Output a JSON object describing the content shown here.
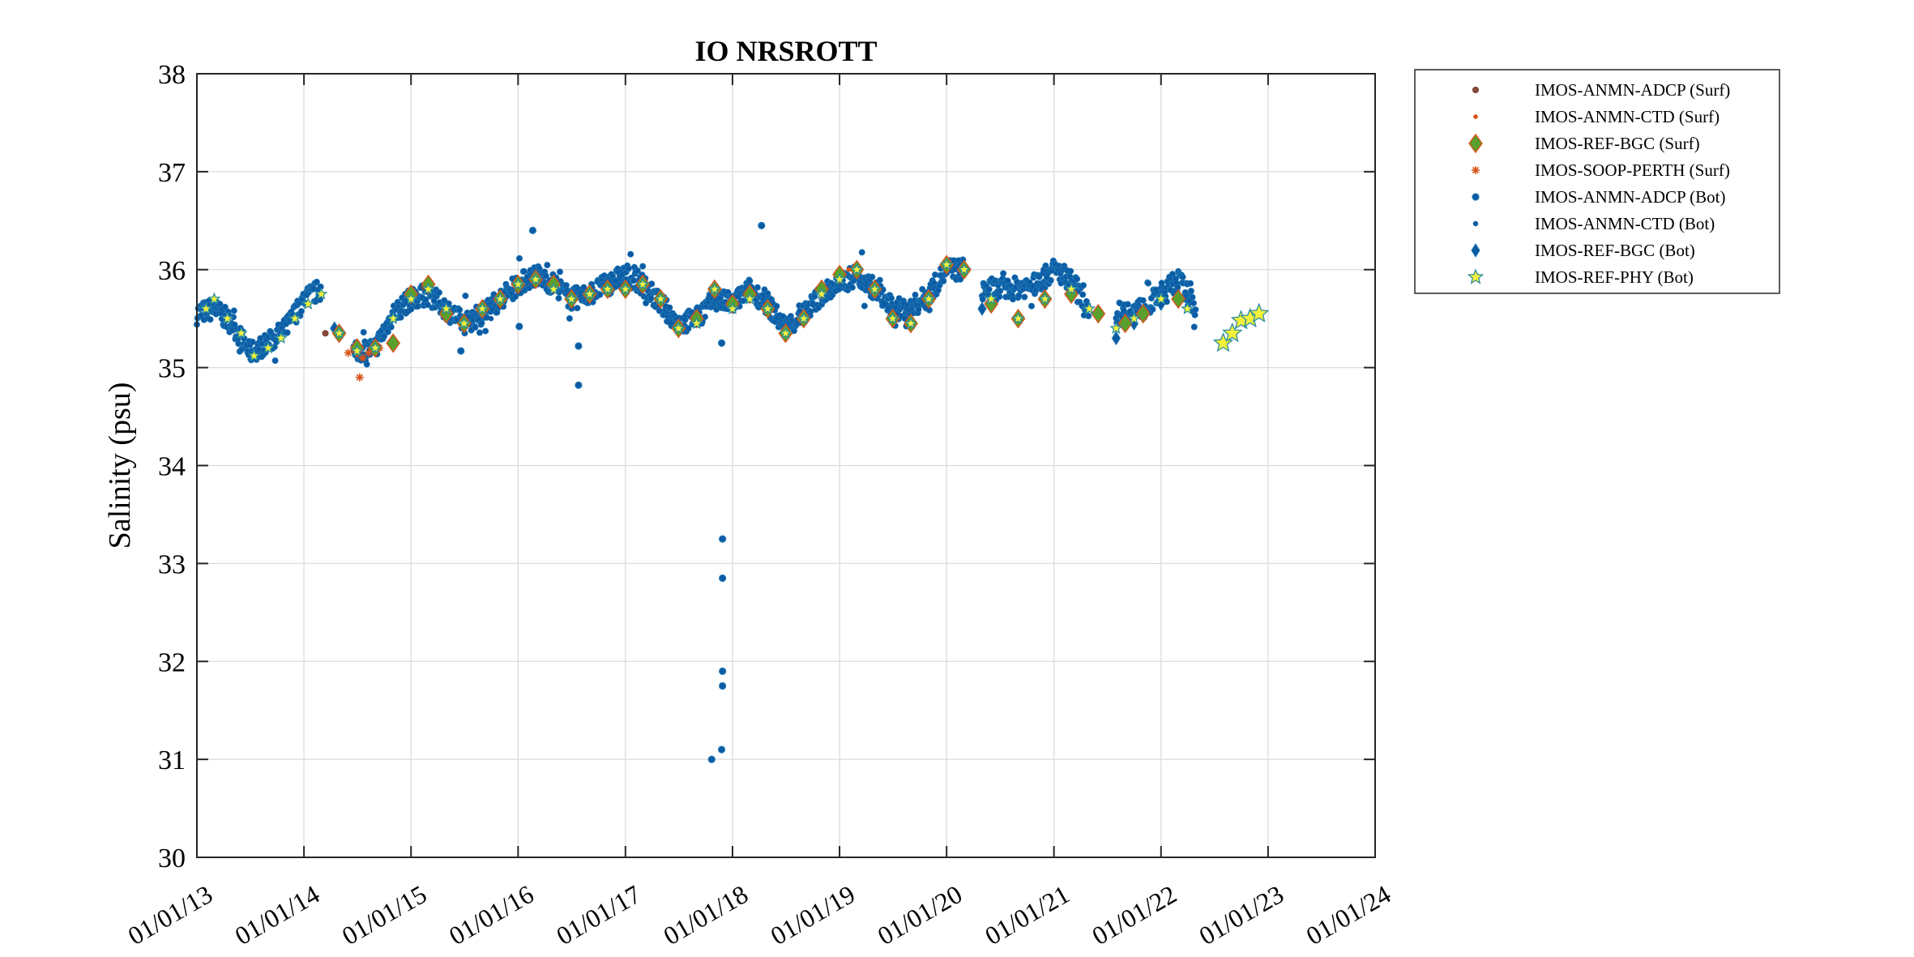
{
  "chart_data": {
    "type": "scatter",
    "title": "IO NRSROTT",
    "xlabel": "",
    "ylabel": "Salinity (psu)",
    "x_is_date": true,
    "xlim": [
      "2013-01-01",
      "2024-01-01"
    ],
    "ylim": [
      30,
      38
    ],
    "x_ticks": [
      "01/01/13",
      "01/01/14",
      "01/01/15",
      "01/01/16",
      "01/01/17",
      "01/01/18",
      "01/01/19",
      "01/01/20",
      "01/01/21",
      "01/01/22",
      "01/01/23",
      "01/01/24"
    ],
    "y_ticks": [
      "30",
      "31",
      "32",
      "33",
      "34",
      "35",
      "36",
      "37",
      "38"
    ],
    "grid": true,
    "legend_position": "outside-top-right",
    "colors": {
      "bot_blue": "#0b5aa4",
      "bot_edge": "#1f77b4",
      "surf_orange": "#d95319",
      "surf_brown": "#8c4a3a",
      "bgc_green": "#5aa02c",
      "star_yellow": "#f5f03a",
      "star_teal": "#2b8f9e",
      "grid": "#dcdcdc",
      "axis": "#262626"
    },
    "series": [
      {
        "name": "IMOS-ANMN-ADCP (Surf)",
        "marker": "dot-brown",
        "points": [
          [
            "2014-03-15",
            35.35
          ],
          [
            "2014-06-20",
            35.18
          ],
          [
            "2014-09-10",
            35.22
          ],
          [
            "2015-02-15",
            35.82
          ]
        ]
      },
      {
        "name": "IMOS-ANMN-CTD (Surf)",
        "marker": "dot-orange",
        "points": [
          [
            "2014-07-01",
            35.2
          ],
          [
            "2015-03-01",
            35.85
          ],
          [
            "2016-05-01",
            35.9
          ],
          [
            "2019-02-01",
            36.0
          ]
        ]
      },
      {
        "name": "IMOS-REF-BGC (Surf)",
        "marker": "diamond-green",
        "points": [
          [
            "2014-05-01",
            35.35
          ],
          [
            "2014-07-01",
            35.2
          ],
          [
            "2014-09-01",
            35.2
          ],
          [
            "2014-11-01",
            35.25
          ],
          [
            "2015-01-01",
            35.75
          ],
          [
            "2015-03-01",
            35.85
          ],
          [
            "2015-05-01",
            35.55
          ],
          [
            "2015-07-01",
            35.45
          ],
          [
            "2015-09-01",
            35.6
          ],
          [
            "2015-11-01",
            35.7
          ],
          [
            "2016-01-01",
            35.85
          ],
          [
            "2016-03-01",
            35.9
          ],
          [
            "2016-05-01",
            35.85
          ],
          [
            "2016-07-01",
            35.7
          ],
          [
            "2016-09-01",
            35.75
          ],
          [
            "2016-11-01",
            35.8
          ],
          [
            "2017-01-01",
            35.8
          ],
          [
            "2017-03-01",
            35.85
          ],
          [
            "2017-05-01",
            35.7
          ],
          [
            "2017-07-01",
            35.4
          ],
          [
            "2017-09-01",
            35.5
          ],
          [
            "2017-11-01",
            35.8
          ],
          [
            "2018-01-01",
            35.65
          ],
          [
            "2018-03-01",
            35.75
          ],
          [
            "2018-05-01",
            35.6
          ],
          [
            "2018-07-01",
            35.35
          ],
          [
            "2018-09-01",
            35.5
          ],
          [
            "2018-11-01",
            35.8
          ],
          [
            "2019-01-01",
            35.95
          ],
          [
            "2019-03-01",
            36.0
          ],
          [
            "2019-05-01",
            35.8
          ],
          [
            "2019-07-01",
            35.5
          ],
          [
            "2019-09-01",
            35.45
          ],
          [
            "2019-11-01",
            35.7
          ],
          [
            "2020-01-01",
            36.05
          ],
          [
            "2020-03-01",
            36.0
          ],
          [
            "2020-06-01",
            35.65
          ],
          [
            "2020-09-01",
            35.5
          ],
          [
            "2020-12-01",
            35.7
          ],
          [
            "2021-03-01",
            35.75
          ],
          [
            "2021-06-01",
            35.55
          ],
          [
            "2021-09-01",
            35.45
          ],
          [
            "2021-11-01",
            35.55
          ],
          [
            "2022-03-01",
            35.7
          ]
        ]
      },
      {
        "name": "IMOS-SOOP-PERTH (Surf)",
        "marker": "asterisk-orange",
        "points": [
          [
            "2014-07-10",
            34.9
          ],
          [
            "2014-06-01",
            35.15
          ],
          [
            "2014-07-20",
            35.1
          ],
          [
            "2014-08-10",
            35.15
          ],
          [
            "2014-08-25",
            35.2
          ],
          [
            "2014-09-15",
            35.2
          ]
        ]
      },
      {
        "name": "IMOS-ANMN-ADCP (Bot)",
        "marker": "circle-blue",
        "points": [
          [
            "2017-10-22",
            31.0
          ],
          [
            "2017-11-25",
            31.1
          ],
          [
            "2017-11-28",
            31.75
          ],
          [
            "2017-11-28",
            31.9
          ],
          [
            "2017-11-28",
            32.85
          ],
          [
            "2017-11-28",
            33.25
          ],
          [
            "2017-11-25",
            35.25
          ],
          [
            "2016-07-25",
            34.82
          ],
          [
            "2016-07-25",
            35.22
          ],
          [
            "2015-06-20",
            35.17
          ],
          [
            "2016-01-05",
            35.42
          ],
          [
            "2018-04-10",
            36.45
          ],
          [
            "2016-02-20",
            36.4
          ]
        ]
      },
      {
        "name": "IMOS-ANMN-CTD (Bot)",
        "marker": "dot-blue",
        "points": [
          [
            "2013-06-01",
            35.35
          ],
          [
            "2015-10-01",
            35.5
          ],
          [
            "2017-06-01",
            35.45
          ],
          [
            "2019-06-01",
            35.65
          ],
          [
            "2021-06-01",
            35.55
          ]
        ]
      },
      {
        "name": "IMOS-REF-BGC (Bot)",
        "marker": "diamond-blue",
        "points": [
          [
            "2014-04-15",
            35.4
          ],
          [
            "2020-05-01",
            35.6
          ],
          [
            "2021-08-01",
            35.3
          ],
          [
            "2021-10-01",
            35.45
          ],
          [
            "2022-01-01",
            35.65
          ]
        ]
      },
      {
        "name": "IMOS-REF-PHY (Bot)",
        "marker": "star",
        "points": [
          [
            "2013-02-01",
            35.6
          ],
          [
            "2013-03-01",
            35.7
          ],
          [
            "2013-04-15",
            35.5
          ],
          [
            "2013-06-01",
            35.35
          ],
          [
            "2013-07-15",
            35.12
          ],
          [
            "2013-09-01",
            35.2
          ],
          [
            "2013-10-15",
            35.3
          ],
          [
            "2013-12-01",
            35.5
          ],
          [
            "2014-01-15",
            35.65
          ],
          [
            "2014-03-01",
            35.75
          ],
          [
            "2014-05-01",
            35.35
          ],
          [
            "2014-07-01",
            35.17
          ],
          [
            "2014-09-01",
            35.2
          ],
          [
            "2014-11-01",
            35.5
          ],
          [
            "2015-01-01",
            35.7
          ],
          [
            "2015-03-01",
            35.8
          ],
          [
            "2015-05-01",
            35.6
          ],
          [
            "2015-07-01",
            35.45
          ],
          [
            "2015-09-01",
            35.6
          ],
          [
            "2015-11-01",
            35.7
          ],
          [
            "2016-01-01",
            35.85
          ],
          [
            "2016-03-01",
            35.9
          ],
          [
            "2016-05-01",
            35.8
          ],
          [
            "2016-07-01",
            35.7
          ],
          [
            "2016-09-01",
            35.75
          ],
          [
            "2016-11-01",
            35.8
          ],
          [
            "2017-01-01",
            35.8
          ],
          [
            "2017-03-01",
            35.85
          ],
          [
            "2017-05-01",
            35.7
          ],
          [
            "2017-07-01",
            35.4
          ],
          [
            "2017-09-01",
            35.45
          ],
          [
            "2017-11-01",
            35.8
          ],
          [
            "2018-01-01",
            35.6
          ],
          [
            "2018-03-01",
            35.7
          ],
          [
            "2018-05-01",
            35.6
          ],
          [
            "2018-07-01",
            35.35
          ],
          [
            "2018-09-01",
            35.5
          ],
          [
            "2018-11-01",
            35.75
          ],
          [
            "2019-01-01",
            35.9
          ],
          [
            "2019-03-01",
            36.0
          ],
          [
            "2019-05-01",
            35.8
          ],
          [
            "2019-07-01",
            35.5
          ],
          [
            "2019-09-01",
            35.45
          ],
          [
            "2019-11-01",
            35.7
          ],
          [
            "2020-01-01",
            36.05
          ],
          [
            "2020-03-01",
            36.0
          ],
          [
            "2020-06-01",
            35.7
          ],
          [
            "2020-09-01",
            35.5
          ],
          [
            "2020-12-01",
            35.7
          ],
          [
            "2021-03-01",
            35.8
          ],
          [
            "2021-05-01",
            35.6
          ],
          [
            "2021-08-01",
            35.4
          ],
          [
            "2021-10-01",
            35.5
          ],
          [
            "2022-01-01",
            35.7
          ],
          [
            "2022-04-01",
            35.6
          ],
          [
            "2022-08-01",
            35.25
          ],
          [
            "2022-09-01",
            35.35
          ],
          [
            "2022-10-01",
            35.48
          ],
          [
            "2022-11-01",
            35.5
          ],
          [
            "2022-12-01",
            35.55
          ]
        ]
      }
    ],
    "dense_band": {
      "series": "IMOS-ANMN-ADCP (Bot)",
      "segments": [
        [
          [
            "2013-01-01",
            35.55
          ],
          [
            "2013-03-01",
            35.6
          ],
          [
            "2013-05-01",
            35.45
          ],
          [
            "2013-07-01",
            35.15
          ],
          [
            "2013-09-01",
            35.25
          ],
          [
            "2013-11-01",
            35.4
          ],
          [
            "2014-01-01",
            35.7
          ],
          [
            "2014-03-01",
            35.8
          ]
        ],
        [
          [
            "2014-06-20",
            35.15
          ],
          [
            "2014-09-01",
            35.2
          ],
          [
            "2014-11-01",
            35.55
          ],
          [
            "2015-01-01",
            35.7
          ],
          [
            "2015-03-01",
            35.75
          ],
          [
            "2015-05-01",
            35.6
          ],
          [
            "2015-07-01",
            35.45
          ],
          [
            "2015-09-01",
            35.55
          ],
          [
            "2015-11-01",
            35.7
          ],
          [
            "2016-01-01",
            35.85
          ],
          [
            "2016-03-01",
            35.95
          ],
          [
            "2016-05-01",
            35.85
          ],
          [
            "2016-07-01",
            35.7
          ],
          [
            "2016-09-01",
            35.75
          ],
          [
            "2016-11-01",
            35.85
          ],
          [
            "2017-01-01",
            35.95
          ],
          [
            "2017-03-01",
            35.85
          ],
          [
            "2017-05-01",
            35.65
          ],
          [
            "2017-07-01",
            35.45
          ],
          [
            "2017-09-01",
            35.5
          ],
          [
            "2017-11-01",
            35.7
          ],
          [
            "2018-01-01",
            35.65
          ],
          [
            "2018-03-01",
            35.8
          ],
          [
            "2018-05-01",
            35.65
          ],
          [
            "2018-07-01",
            35.4
          ],
          [
            "2018-09-01",
            35.55
          ],
          [
            "2018-11-01",
            35.75
          ],
          [
            "2019-01-01",
            35.85
          ],
          [
            "2019-03-01",
            35.95
          ],
          [
            "2019-05-01",
            35.8
          ],
          [
            "2019-07-01",
            35.6
          ],
          [
            "2019-09-01",
            35.6
          ],
          [
            "2019-11-01",
            35.75
          ],
          [
            "2020-01-01",
            36.0
          ],
          [
            "2020-03-01",
            36.0
          ]
        ],
        [
          [
            "2020-05-01",
            35.8
          ],
          [
            "2020-08-01",
            35.8
          ],
          [
            "2020-11-01",
            35.85
          ],
          [
            "2021-01-01",
            36.0
          ],
          [
            "2021-03-01",
            35.9
          ],
          [
            "2021-05-01",
            35.6
          ]
        ],
        [
          [
            "2021-08-01",
            35.55
          ],
          [
            "2021-11-01",
            35.6
          ],
          [
            "2022-01-01",
            35.75
          ],
          [
            "2022-03-01",
            35.9
          ],
          [
            "2022-05-01",
            35.6
          ]
        ]
      ]
    }
  }
}
